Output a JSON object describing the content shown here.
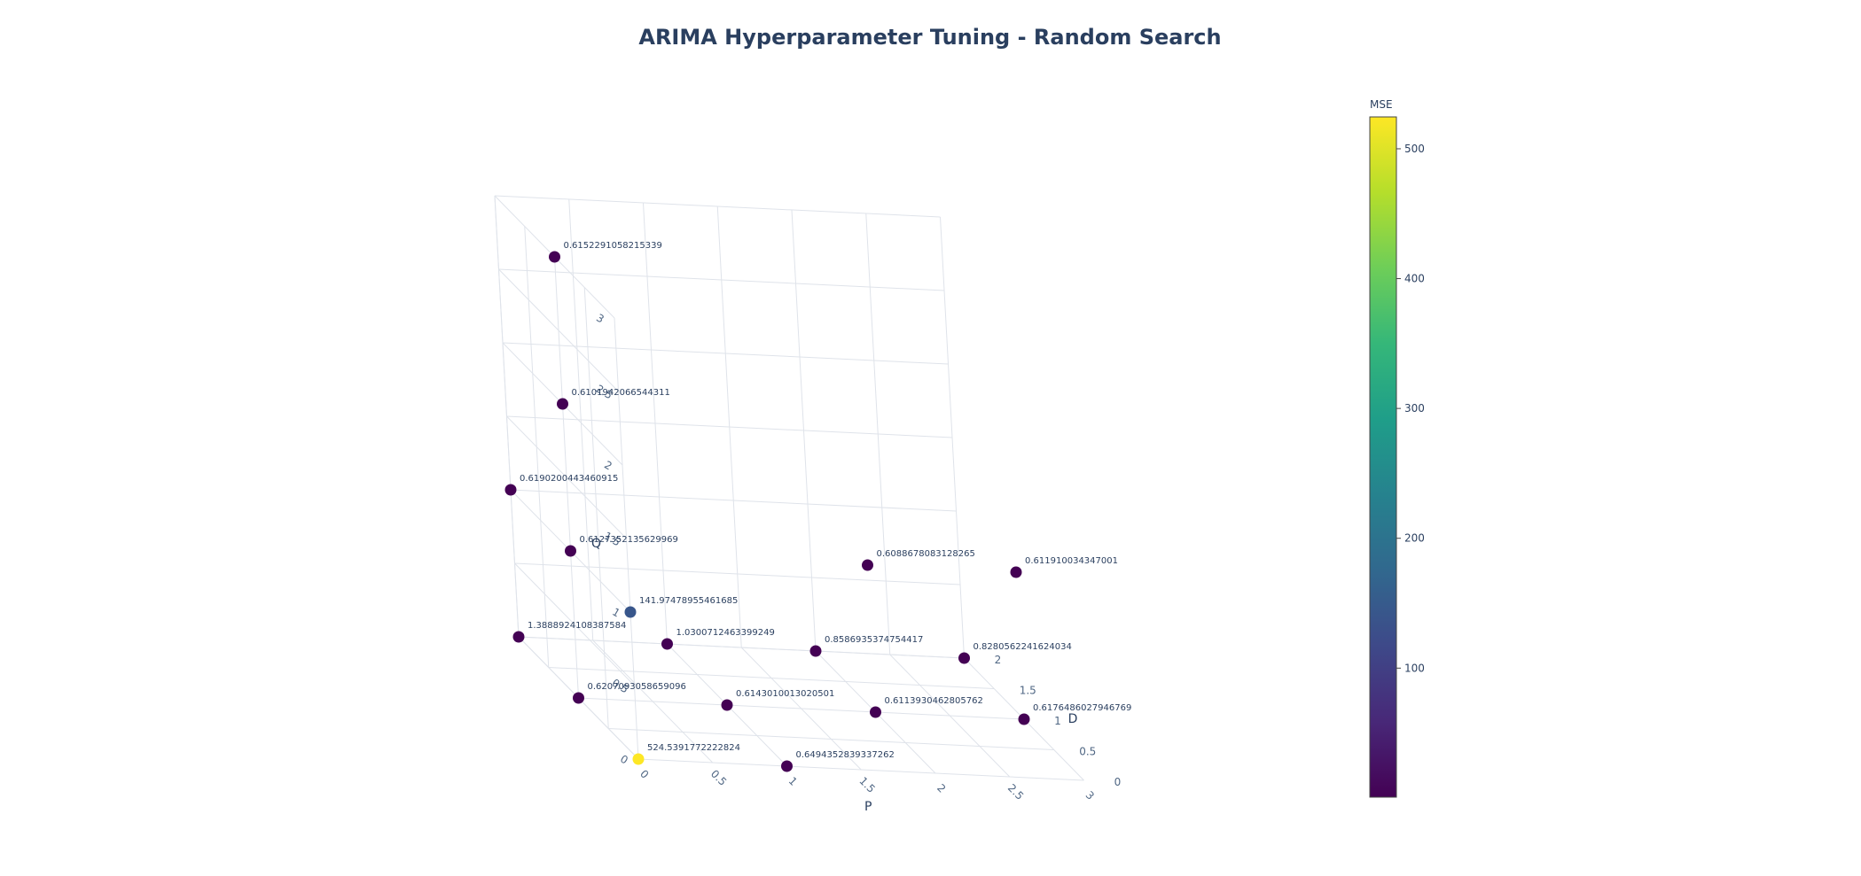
{
  "chart_data": {
    "type": "scatter3d",
    "title": "ARIMA Hyperparameter Tuning - Random Search",
    "axes": {
      "x": {
        "label": "P",
        "range": [
          0,
          3
        ],
        "ticks": [
          "0",
          "0.5",
          "1",
          "1.5",
          "2",
          "2.5",
          "3"
        ]
      },
      "y": {
        "label": "D",
        "range": [
          0,
          2
        ],
        "ticks": [
          "0",
          "0.5",
          "1",
          "1.5",
          "2"
        ]
      },
      "z": {
        "label": "Q",
        "range": [
          0,
          3
        ],
        "ticks": [
          "0",
          "0.5",
          "1",
          "1.5",
          "2",
          "2.5",
          "3"
        ]
      }
    },
    "grid": true,
    "colorbar": {
      "title": "MSE",
      "colorscale": "Viridis",
      "range": [
        0.6088678083128265,
        524.5391772222824
      ],
      "ticks": [
        "100",
        "200",
        "300",
        "400",
        "500"
      ]
    },
    "points": [
      {
        "p": 0,
        "d": 0,
        "q": 0,
        "mse": 524.5391772222824,
        "label": "524.5391772222824"
      },
      {
        "p": 1,
        "d": 0,
        "q": 0,
        "mse": 0.6494352839337262,
        "label": "0.6494352839337262"
      },
      {
        "p": 0,
        "d": 1,
        "q": 0,
        "mse": 0.6207093058659096,
        "label": "0.6207093058659096"
      },
      {
        "p": 1,
        "d": 1,
        "q": 0,
        "mse": 0.6143010013020501,
        "label": "0.6143010013020501"
      },
      {
        "p": 2,
        "d": 1,
        "q": 0,
        "mse": 0.6113930462805762,
        "label": "0.6113930462805762"
      },
      {
        "p": 3,
        "d": 1,
        "q": 0,
        "mse": 0.6176486027946769,
        "label": "0.6176486027946769"
      },
      {
        "p": 0,
        "d": 2,
        "q": 0,
        "mse": 1.3888924108387584,
        "label": "1.3888924108387584"
      },
      {
        "p": 1,
        "d": 2,
        "q": 0,
        "mse": 1.0300712463399249,
        "label": "1.0300712463399249"
      },
      {
        "p": 2,
        "d": 2,
        "q": 0,
        "mse": 0.8586935374754417,
        "label": "0.8586935374754417"
      },
      {
        "p": 3,
        "d": 2,
        "q": 0,
        "mse": 0.8280562241624034,
        "label": "0.8280562241624034"
      },
      {
        "p": 0,
        "d": 0,
        "q": 1,
        "mse": 141.97478955461685,
        "label": "141.97478955461685"
      },
      {
        "p": 0,
        "d": 1,
        "q": 1,
        "mse": 0.6127352135629969,
        "label": "0.6127352135629969"
      },
      {
        "p": 0,
        "d": 2,
        "q": 1,
        "mse": 0.6190200443460915,
        "label": "0.6190200443460915"
      },
      {
        "p": 2,
        "d": 1,
        "q": 1,
        "mse": 0.6088678083128265,
        "label": "0.6088678083128265"
      },
      {
        "p": 3,
        "d": 1,
        "q": 1,
        "mse": 0.611910034347001,
        "label": "0.611910034347001"
      },
      {
        "p": 0,
        "d": 1,
        "q": 2,
        "mse": 0.6101942066544311,
        "label": "0.6101942066544311"
      },
      {
        "p": 0,
        "d": 1,
        "q": 3,
        "mse": 0.6152291058215339,
        "label": "0.6152291058215339"
      }
    ]
  }
}
